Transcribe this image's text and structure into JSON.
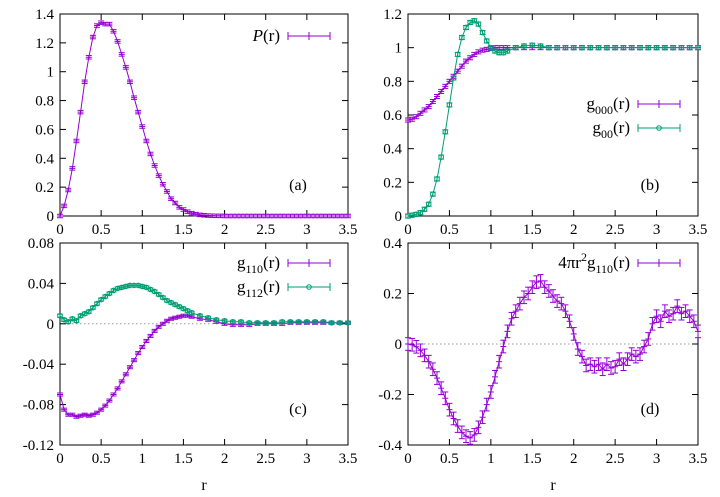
{
  "colors": {
    "purple": "#9400d3",
    "green": "#009e73",
    "axis": "#000000",
    "zero_line": "#999999"
  },
  "shared_xlabel": "r",
  "chart_data": [
    {
      "panel": "a",
      "type": "line",
      "panel_label": "(a)",
      "xlim": [
        0,
        3.5
      ],
      "ylim": [
        0,
        1.4
      ],
      "xticks": [
        "0",
        "0.5",
        "1",
        "1.5",
        "2",
        "2.5",
        "3",
        "3.5"
      ],
      "yticks": [
        "0",
        "0.2",
        "0.4",
        "0.6",
        "0.8",
        "1",
        "1.2",
        "1.4"
      ],
      "grid": false,
      "legend_position": "top-right",
      "series": [
        {
          "name": "P(r)",
          "color": "#9400d3",
          "marker": "plus",
          "x": [
            0.0,
            0.05,
            0.1,
            0.15,
            0.2,
            0.25,
            0.3,
            0.35,
            0.4,
            0.45,
            0.5,
            0.55,
            0.6,
            0.65,
            0.7,
            0.75,
            0.8,
            0.85,
            0.9,
            0.95,
            1.0,
            1.05,
            1.1,
            1.15,
            1.2,
            1.25,
            1.3,
            1.35,
            1.4,
            1.45,
            1.5,
            1.55,
            1.6,
            1.65,
            1.7,
            1.75,
            1.8,
            1.85,
            1.9,
            1.95,
            2.0,
            2.05,
            2.1,
            2.15,
            2.2,
            2.25,
            2.3,
            2.35,
            2.4,
            2.45,
            2.5,
            2.55,
            2.6,
            2.65,
            2.7,
            2.75,
            2.8,
            2.85,
            2.9,
            2.95,
            3.0,
            3.05,
            3.1,
            3.15,
            3.2,
            3.25,
            3.3,
            3.35,
            3.4,
            3.45,
            3.5
          ],
          "y": [
            0.0,
            0.07,
            0.18,
            0.33,
            0.52,
            0.72,
            0.93,
            1.1,
            1.24,
            1.32,
            1.34,
            1.33,
            1.33,
            1.28,
            1.21,
            1.12,
            1.03,
            0.93,
            0.82,
            0.72,
            0.62,
            0.52,
            0.43,
            0.35,
            0.28,
            0.22,
            0.17,
            0.12,
            0.09,
            0.06,
            0.045,
            0.03,
            0.02,
            0.013,
            0.008,
            0.005,
            0.003,
            0.002,
            0.001,
            0.001,
            0.0,
            0.0,
            0.0,
            0.0,
            0.0,
            0.0,
            0.0,
            0.0,
            0.0,
            0.0,
            0.0,
            0.0,
            0.0,
            0.0,
            0.0,
            0.0,
            0.0,
            0.0,
            0.0,
            0.0,
            0.0,
            0.0,
            0.0,
            0.0,
            0.0,
            0.0,
            0.0,
            0.0,
            0.0,
            0.0,
            0.0
          ],
          "err": 0.012
        }
      ]
    },
    {
      "panel": "b",
      "type": "line",
      "panel_label": "(b)",
      "xlim": [
        0,
        3.5
      ],
      "ylim": [
        0,
        1.2
      ],
      "xticks": [
        "0",
        "0.5",
        "1",
        "1.5",
        "2",
        "2.5",
        "3",
        "3.5"
      ],
      "yticks": [
        "0",
        "0.2",
        "0.4",
        "0.6",
        "0.8",
        "1",
        "1.2"
      ],
      "grid": false,
      "legend_position": "right-middle",
      "series": [
        {
          "name": "g000(r)",
          "color": "#9400d3",
          "marker": "plus",
          "x": [
            0.0,
            0.05,
            0.1,
            0.15,
            0.2,
            0.25,
            0.3,
            0.35,
            0.4,
            0.45,
            0.5,
            0.55,
            0.6,
            0.65,
            0.7,
            0.75,
            0.8,
            0.85,
            0.9,
            0.95,
            1.0,
            1.05,
            1.1,
            1.15,
            1.2,
            1.3,
            1.4,
            1.5,
            1.6,
            1.7,
            1.8,
            1.9,
            2.0,
            2.1,
            2.2,
            2.3,
            2.4,
            2.5,
            2.6,
            2.7,
            2.8,
            2.9,
            3.0,
            3.1,
            3.2,
            3.3,
            3.4,
            3.5
          ],
          "y": [
            0.57,
            0.575,
            0.59,
            0.61,
            0.63,
            0.65,
            0.68,
            0.71,
            0.74,
            0.77,
            0.8,
            0.83,
            0.86,
            0.89,
            0.92,
            0.94,
            0.96,
            0.975,
            0.985,
            0.99,
            0.995,
            1.0,
            1.0,
            1.0,
            1.0,
            1.0,
            1.0,
            1.0,
            1.0,
            1.0,
            1.0,
            1.0,
            1.0,
            1.0,
            1.0,
            1.0,
            1.0,
            1.0,
            1.0,
            1.0,
            1.0,
            1.0,
            1.0,
            1.0,
            1.0,
            1.0,
            1.0,
            1.0
          ],
          "err": 0.012
        },
        {
          "name": "g00(r)",
          "color": "#009e73",
          "marker": "circle",
          "x": [
            0.0,
            0.05,
            0.1,
            0.15,
            0.2,
            0.25,
            0.3,
            0.35,
            0.4,
            0.45,
            0.5,
            0.55,
            0.6,
            0.65,
            0.7,
            0.75,
            0.8,
            0.85,
            0.9,
            0.95,
            1.0,
            1.05,
            1.1,
            1.15,
            1.2,
            1.3,
            1.4,
            1.5,
            1.6,
            1.7,
            1.8,
            1.9,
            2.0,
            2.1,
            2.2,
            2.3,
            2.4,
            2.5,
            2.6,
            2.7,
            2.8,
            2.9,
            3.0,
            3.1,
            3.2,
            3.3,
            3.4,
            3.5
          ],
          "y": [
            0.0,
            0.005,
            0.01,
            0.02,
            0.04,
            0.07,
            0.13,
            0.22,
            0.35,
            0.5,
            0.66,
            0.82,
            0.96,
            1.06,
            1.12,
            1.15,
            1.16,
            1.14,
            1.09,
            1.04,
            1.0,
            0.98,
            0.97,
            0.97,
            0.98,
            1.0,
            1.01,
            1.015,
            1.01,
            1.0,
            1.0,
            1.0,
            1.0,
            1.0,
            1.0,
            1.0,
            1.0,
            1.0,
            1.0,
            1.0,
            1.0,
            1.0,
            1.0,
            1.0,
            1.0,
            1.0,
            1.0,
            1.0
          ],
          "err": 0.012
        }
      ]
    },
    {
      "panel": "c",
      "type": "line",
      "panel_label": "(c)",
      "xlim": [
        0,
        3.5
      ],
      "ylim": [
        -0.12,
        0.08
      ],
      "xticks": [
        "0",
        "0.5",
        "1",
        "1.5",
        "2",
        "2.5",
        "3",
        "3.5"
      ],
      "yticks": [
        "-0.12",
        "-0.08",
        "-0.04",
        "0",
        "0.04",
        "0.08"
      ],
      "grid": false,
      "zero_line": true,
      "legend_position": "top-right",
      "series": [
        {
          "name": "g110(r)",
          "color": "#9400d3",
          "marker": "plus",
          "x": [
            0.0,
            0.05,
            0.1,
            0.15,
            0.2,
            0.25,
            0.3,
            0.35,
            0.4,
            0.45,
            0.5,
            0.55,
            0.6,
            0.65,
            0.7,
            0.75,
            0.8,
            0.85,
            0.9,
            0.95,
            1.0,
            1.05,
            1.1,
            1.15,
            1.2,
            1.25,
            1.3,
            1.35,
            1.4,
            1.45,
            1.5,
            1.55,
            1.6,
            1.7,
            1.8,
            1.9,
            2.0,
            2.1,
            2.2,
            2.3,
            2.4,
            2.5,
            2.6,
            2.7,
            2.8,
            2.9,
            3.0,
            3.1,
            3.2,
            3.3,
            3.4,
            3.5
          ],
          "y": [
            -0.07,
            -0.085,
            -0.09,
            -0.09,
            -0.092,
            -0.091,
            -0.09,
            -0.091,
            -0.09,
            -0.088,
            -0.085,
            -0.081,
            -0.076,
            -0.07,
            -0.064,
            -0.057,
            -0.05,
            -0.043,
            -0.036,
            -0.029,
            -0.023,
            -0.017,
            -0.012,
            -0.007,
            -0.003,
            0.0,
            0.003,
            0.005,
            0.006,
            0.007,
            0.008,
            0.008,
            0.007,
            0.005,
            0.004,
            0.002,
            0.0,
            -0.001,
            -0.001,
            -0.001,
            0.0,
            0.0,
            0.0,
            0.0,
            0.001,
            0.001,
            0.001,
            0.001,
            0.001,
            0.001,
            0.001,
            0.001
          ],
          "err": 0.0015
        },
        {
          "name": "g112(r)",
          "color": "#009e73",
          "marker": "circle",
          "x": [
            0.0,
            0.05,
            0.1,
            0.15,
            0.2,
            0.25,
            0.3,
            0.35,
            0.4,
            0.45,
            0.5,
            0.55,
            0.6,
            0.65,
            0.7,
            0.75,
            0.8,
            0.85,
            0.9,
            0.95,
            1.0,
            1.05,
            1.1,
            1.15,
            1.2,
            1.25,
            1.3,
            1.35,
            1.4,
            1.45,
            1.5,
            1.55,
            1.6,
            1.7,
            1.8,
            1.9,
            2.0,
            2.1,
            2.2,
            2.3,
            2.4,
            2.5,
            2.6,
            2.7,
            2.8,
            2.9,
            3.0,
            3.1,
            3.2,
            3.3,
            3.4,
            3.5
          ],
          "y": [
            0.008,
            0.004,
            0.002,
            0.005,
            0.003,
            0.008,
            0.01,
            0.012,
            0.016,
            0.02,
            0.024,
            0.027,
            0.03,
            0.033,
            0.035,
            0.036,
            0.037,
            0.038,
            0.038,
            0.038,
            0.037,
            0.036,
            0.034,
            0.032,
            0.029,
            0.026,
            0.023,
            0.021,
            0.019,
            0.017,
            0.015,
            0.013,
            0.011,
            0.008,
            0.006,
            0.004,
            0.003,
            0.002,
            0.002,
            0.001,
            0.001,
            0.001,
            0.001,
            0.002,
            0.002,
            0.002,
            0.002,
            0.002,
            0.002,
            0.001,
            0.001,
            0.001
          ],
          "err": 0.0015
        }
      ]
    },
    {
      "panel": "d",
      "type": "line",
      "panel_label": "(d)",
      "xlim": [
        0,
        3.5
      ],
      "ylim": [
        -0.4,
        0.4
      ],
      "xticks": [
        "0",
        "0.5",
        "1",
        "1.5",
        "2",
        "2.5",
        "3",
        "3.5"
      ],
      "yticks": [
        "-0.4",
        "-0.2",
        "0",
        "0.2",
        "0.4"
      ],
      "grid": false,
      "zero_line": true,
      "legend_position": "top-right",
      "series": [
        {
          "name": "4πr2g110(r)",
          "color": "#9400d3",
          "marker": "plus",
          "x": [
            0.0,
            0.05,
            0.1,
            0.15,
            0.2,
            0.25,
            0.3,
            0.35,
            0.4,
            0.45,
            0.5,
            0.55,
            0.6,
            0.65,
            0.7,
            0.75,
            0.8,
            0.85,
            0.9,
            0.95,
            1.0,
            1.05,
            1.1,
            1.15,
            1.2,
            1.25,
            1.3,
            1.35,
            1.4,
            1.45,
            1.5,
            1.55,
            1.6,
            1.65,
            1.7,
            1.75,
            1.8,
            1.85,
            1.9,
            1.95,
            2.0,
            2.05,
            2.1,
            2.15,
            2.2,
            2.25,
            2.3,
            2.35,
            2.4,
            2.45,
            2.5,
            2.55,
            2.6,
            2.65,
            2.7,
            2.75,
            2.8,
            2.85,
            2.9,
            2.95,
            3.0,
            3.05,
            3.1,
            3.15,
            3.2,
            3.25,
            3.3,
            3.35,
            3.4,
            3.45,
            3.5
          ],
          "y": [
            0.0,
            -0.003,
            -0.011,
            -0.025,
            -0.045,
            -0.07,
            -0.1,
            -0.135,
            -0.175,
            -0.215,
            -0.26,
            -0.295,
            -0.325,
            -0.35,
            -0.365,
            -0.372,
            -0.36,
            -0.33,
            -0.29,
            -0.24,
            -0.19,
            -0.13,
            -0.07,
            -0.01,
            0.05,
            0.1,
            0.13,
            0.16,
            0.185,
            0.2,
            0.225,
            0.245,
            0.25,
            0.225,
            0.21,
            0.19,
            0.17,
            0.16,
            0.13,
            0.09,
            0.04,
            -0.02,
            -0.05,
            -0.085,
            -0.08,
            -0.09,
            -0.08,
            -0.1,
            -0.08,
            -0.095,
            -0.09,
            -0.06,
            -0.08,
            -0.06,
            -0.04,
            -0.05,
            -0.04,
            -0.01,
            0.02,
            0.08,
            0.11,
            0.09,
            0.13,
            0.11,
            0.12,
            0.15,
            0.12,
            0.13,
            0.11,
            0.09,
            0.05
          ],
          "err": 0.025
        }
      ]
    }
  ]
}
